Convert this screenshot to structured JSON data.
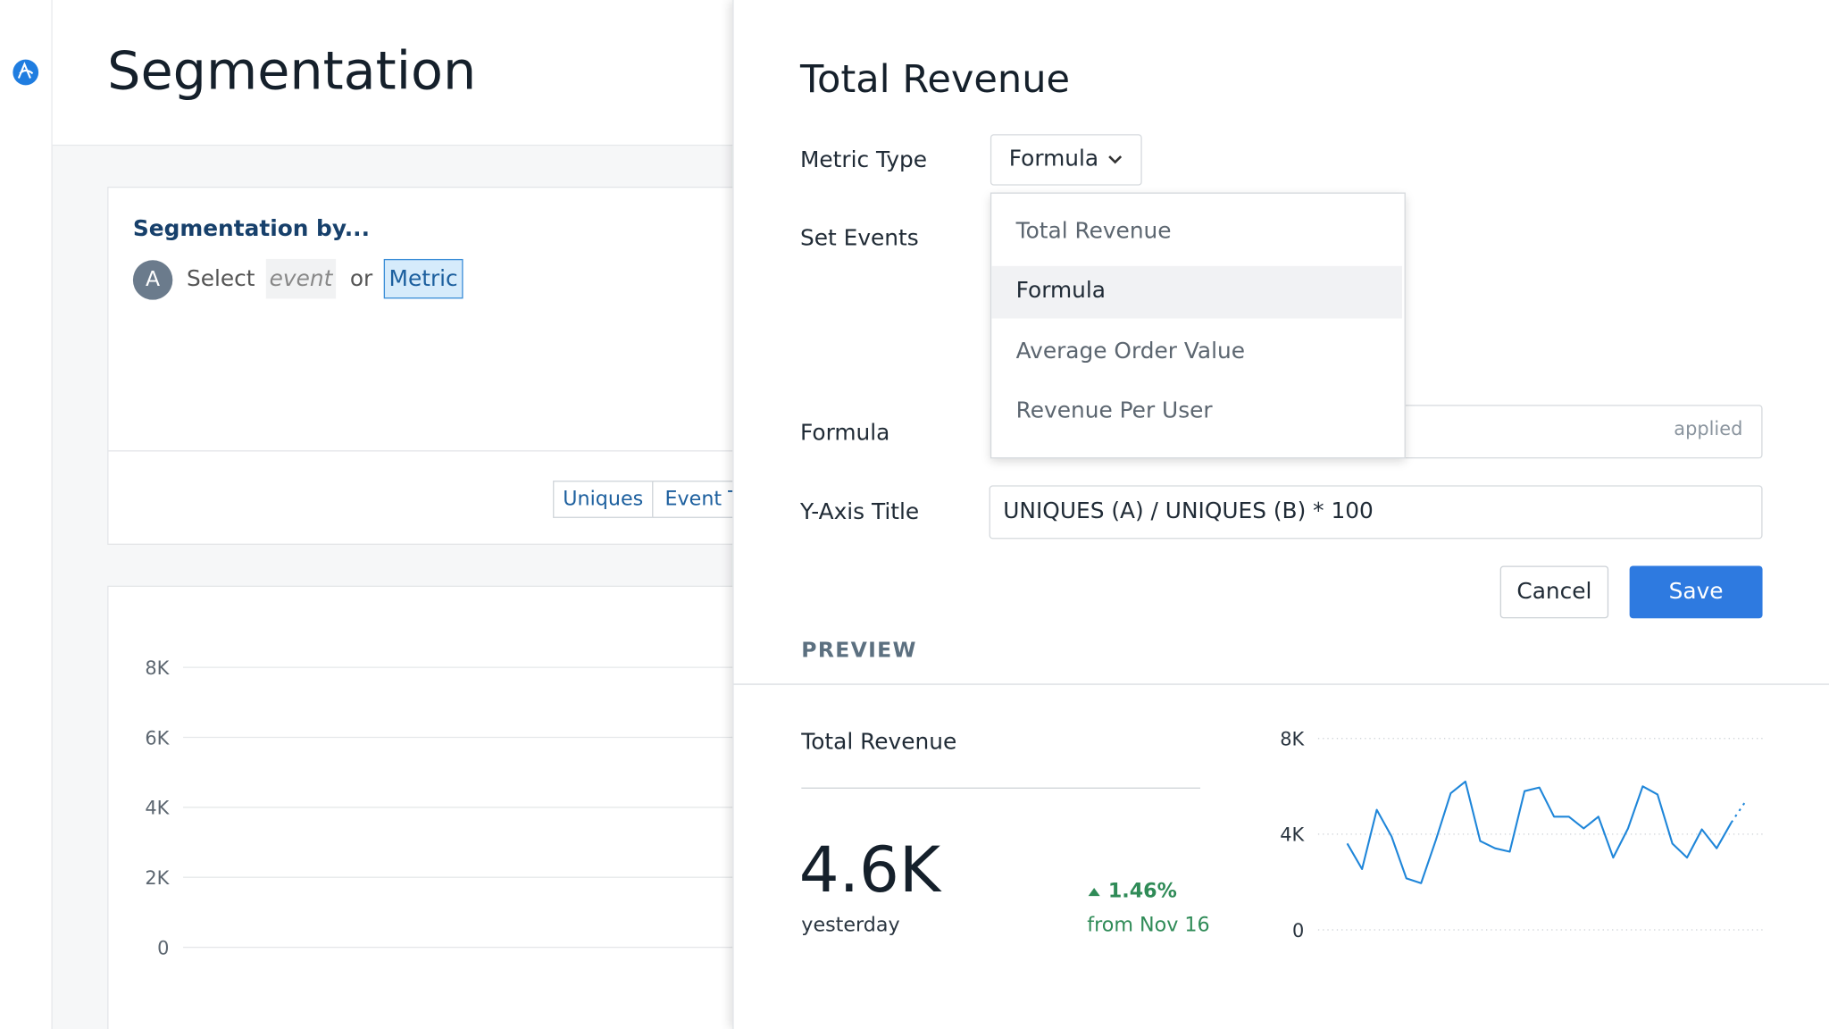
{
  "page": {
    "title": "Segmentation"
  },
  "segmentation": {
    "heading": "Segmentation by...",
    "badge": "A",
    "select": "Select",
    "event": "event",
    "or": "or",
    "metric": "Metric",
    "buttons": [
      "Uniques",
      "Event Totals"
    ]
  },
  "background_chart": {
    "ylim": [
      0,
      8000
    ],
    "yticks": [
      {
        "value": 8000,
        "label": "8K"
      },
      {
        "value": 6000,
        "label": "6K"
      },
      {
        "value": 4000,
        "label": "4K"
      },
      {
        "value": 2000,
        "label": "2K"
      },
      0
    ]
  },
  "panel": {
    "title": "Total Revenue",
    "metric_type": {
      "label": "Metric Type",
      "value": "Formula"
    },
    "set_events": {
      "label": "Set Events"
    },
    "dropdown": {
      "options": [
        "Total Revenue",
        "Formula",
        "Average Order Value",
        "Revenue Per User"
      ],
      "selected": 1
    },
    "formula": {
      "label": "Formula",
      "hint": "applied"
    },
    "y_axis_title": {
      "label": "Y-Axis Title",
      "value": "UNIQUES (A) / UNIQUES (B) * 100"
    },
    "buttons": {
      "cancel": "Cancel",
      "save": "Save"
    },
    "preview": {
      "heading": "PREVIEW",
      "title": "Total Revenue",
      "value": "4.6K",
      "period": "yesterday",
      "change": "1.46%",
      "compare": "from Nov 16",
      "chart": {
        "type": "line",
        "ylim": [
          0,
          8000
        ],
        "yticks": [
          {
            "value": 8000,
            "label": "8K"
          },
          {
            "value": 4000,
            "label": "4K"
          },
          0
        ],
        "color": "#1f86d9",
        "series": [
          {
            "style": "solid",
            "values": [
              3610,
              2540,
              5020,
              3900,
              2150,
              1950,
              3760,
              5710,
              6200,
              3710,
              3410,
              3270,
              5800,
              5950,
              4730,
              4730,
              4240,
              4730,
              3020,
              4240,
              6000,
              5660,
              3610,
              3020,
              4200,
              3410,
              4490,
              null
            ]
          },
          {
            "style": "dotted",
            "values": [
              null,
              null,
              null,
              null,
              null,
              null,
              null,
              null,
              null,
              null,
              null,
              null,
              null,
              null,
              null,
              null,
              null,
              null,
              null,
              null,
              null,
              null,
              null,
              null,
              null,
              null,
              4490,
              5410
            ]
          }
        ]
      }
    }
  }
}
